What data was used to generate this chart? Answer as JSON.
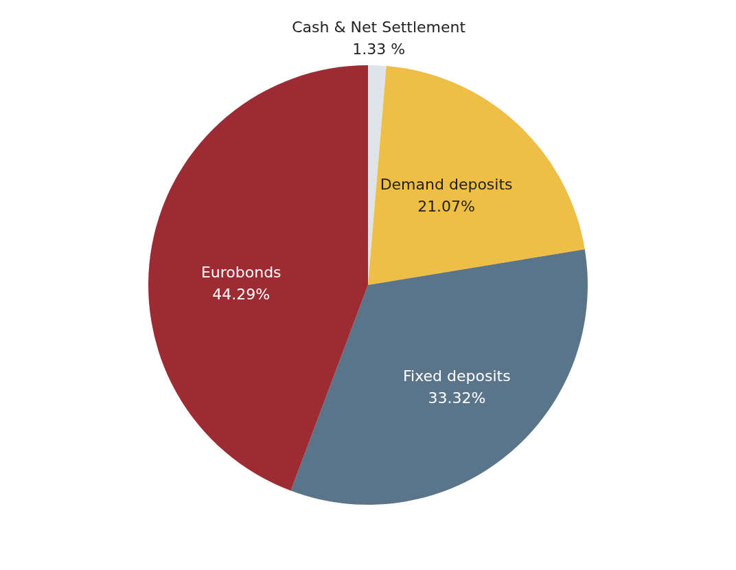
{
  "chart_data": {
    "type": "pie",
    "categories": [
      "Cash & Net Settlement",
      "Demand deposits",
      "Fixed deposits",
      "Eurobonds"
    ],
    "values": [
      1.33,
      21.07,
      33.32,
      44.29
    ],
    "value_labels": [
      "1.33 %",
      "21.07%",
      "33.32%",
      "44.29%"
    ],
    "colors": [
      "#dfe4e8",
      "#eebe45",
      "#5a7589",
      "#9c2b33"
    ]
  }
}
